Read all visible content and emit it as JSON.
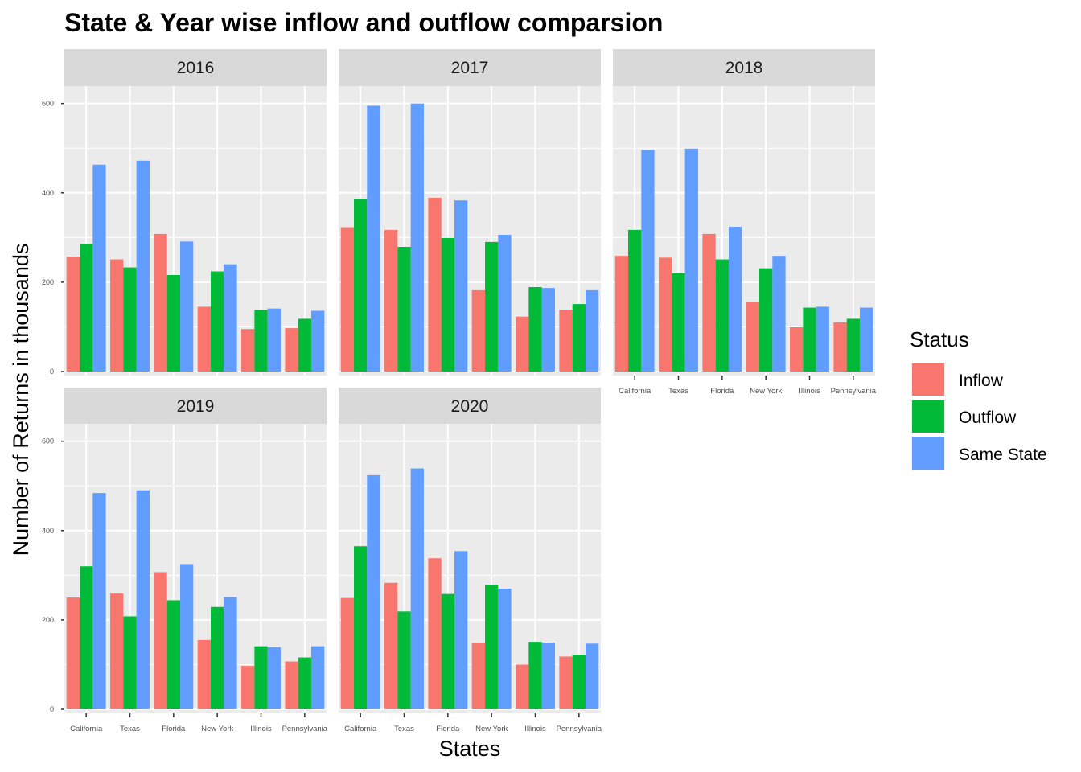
{
  "chart_data": {
    "type": "bar",
    "layout": "faceted",
    "title": "State & Year wise inflow and outflow comparsion",
    "xlabel": "States",
    "ylabel": "Number of Returns in thousands",
    "ylim": [
      0,
      630
    ],
    "y_ticks": [
      0,
      200,
      400,
      600
    ],
    "grid": true,
    "legend": {
      "title": "Status",
      "position": "right"
    },
    "categories": [
      "California",
      "Texas",
      "Florida",
      "New York",
      "Illinois",
      "Pennsylvania"
    ],
    "series_names": [
      "Inflow",
      "Outflow",
      "Same State"
    ],
    "colors": {
      "Inflow": "#F8766D",
      "Outflow": "#00BA38",
      "Same State": "#619CFF"
    },
    "facets": [
      {
        "label": "2016",
        "series": [
          {
            "name": "Inflow",
            "values": [
              257,
              251,
              308,
              145,
              95,
              97
            ]
          },
          {
            "name": "Outflow",
            "values": [
              285,
              233,
              216,
              224,
              138,
              118
            ]
          },
          {
            "name": "Same State",
            "values": [
              463,
              472,
              291,
              240,
              141,
              136
            ]
          }
        ]
      },
      {
        "label": "2017",
        "series": [
          {
            "name": "Inflow",
            "values": [
              323,
              317,
              389,
              182,
              123,
              138
            ]
          },
          {
            "name": "Outflow",
            "values": [
              387,
              279,
              299,
              290,
              189,
              151
            ]
          },
          {
            "name": "Same State",
            "values": [
              595,
              600,
              383,
              306,
              187,
              182
            ]
          }
        ]
      },
      {
        "label": "2018",
        "series": [
          {
            "name": "Inflow",
            "values": [
              259,
              255,
              308,
              156,
              99,
              110
            ]
          },
          {
            "name": "Outflow",
            "values": [
              317,
              220,
              251,
              231,
              143,
              118
            ]
          },
          {
            "name": "Same State",
            "values": [
              496,
              499,
              324,
              259,
              145,
              143
            ]
          }
        ]
      },
      {
        "label": "2019",
        "series": [
          {
            "name": "Inflow",
            "values": [
              250,
              259,
              307,
              155,
              97,
              107
            ]
          },
          {
            "name": "Outflow",
            "values": [
              320,
              208,
              244,
              229,
              141,
              116
            ]
          },
          {
            "name": "Same State",
            "values": [
              484,
              490,
              325,
              251,
              139,
              141
            ]
          }
        ]
      },
      {
        "label": "2020",
        "series": [
          {
            "name": "Inflow",
            "values": [
              249,
              283,
              338,
              148,
              100,
              118
            ]
          },
          {
            "name": "Outflow",
            "values": [
              365,
              219,
              258,
              278,
              151,
              122
            ]
          },
          {
            "name": "Same State",
            "values": [
              524,
              539,
              354,
              270,
              149,
              147
            ]
          }
        ]
      }
    ]
  }
}
